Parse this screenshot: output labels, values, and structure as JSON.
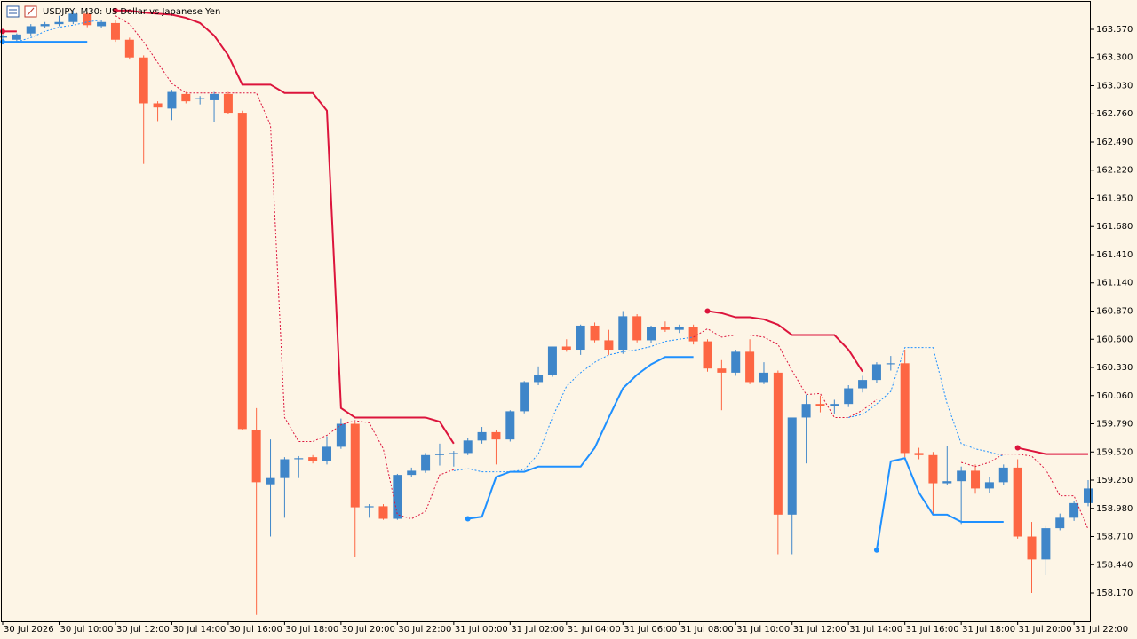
{
  "chart_data": {
    "type": "candlestick",
    "title": "USDJPY, M30:  US Dollar vs Japanese Yen",
    "categories": [
      "30 Jul 2026",
      null,
      null,
      null,
      "30 Jul 10:00",
      null,
      null,
      null,
      "30 Jul 12:00",
      null,
      null,
      null,
      "30 Jul 14:00",
      null,
      null,
      null,
      "30 Jul 16:00",
      null,
      null,
      null,
      "30 Jul 18:00",
      null,
      null,
      null,
      "30 Jul 20:00",
      null,
      null,
      null,
      "30 Jul 22:00",
      null,
      null,
      null,
      "31 Jul 00:00",
      null,
      null,
      null,
      "31 Jul 02:00",
      null,
      null,
      null,
      "31 Jul 04:00",
      null,
      null,
      null,
      "31 Jul 06:00",
      null,
      null,
      null,
      "31 Jul 08:00",
      null,
      null,
      null,
      "31 Jul 10:00",
      null,
      null,
      null,
      "31 Jul 12:00",
      null,
      null,
      null,
      "31 Jul 14:00",
      null,
      null,
      null,
      "31 Jul 16:00",
      null,
      null,
      null,
      "31 Jul 18:00",
      null,
      null,
      null,
      "31 Jul 20:00",
      null,
      null,
      null,
      "31 Jul 22:00",
      null
    ],
    "open": [
      163.49,
      163.47,
      163.53,
      163.6,
      163.62,
      163.64,
      163.72,
      163.6,
      163.63,
      163.47,
      163.3,
      162.86,
      162.81,
      162.95,
      162.9,
      162.89,
      162.95,
      162.77,
      159.73,
      159.21,
      159.27,
      159.45,
      159.47,
      159.43,
      159.57,
      159.79,
      158.99,
      159.0,
      158.88,
      159.3,
      159.34,
      159.49,
      159.5,
      159.51,
      159.63,
      159.71,
      159.64,
      159.91,
      160.19,
      160.26,
      160.53,
      160.5,
      160.73,
      160.59,
      160.5,
      160.82,
      160.59,
      160.72,
      160.69,
      160.72,
      160.58,
      160.32,
      160.28,
      160.48,
      160.19,
      160.28,
      158.92,
      159.85,
      159.98,
      159.96,
      159.98,
      160.13,
      160.21,
      160.36,
      160.37,
      159.51,
      159.49,
      159.22,
      159.24,
      159.34,
      159.17,
      159.23,
      159.37,
      158.71,
      158.49,
      158.79,
      158.89,
      159.03
    ],
    "high": [
      163.52,
      163.53,
      163.62,
      163.64,
      163.7,
      163.75,
      163.74,
      163.66,
      163.66,
      163.49,
      163.32,
      162.88,
      162.99,
      162.97,
      162.93,
      162.97,
      162.97,
      162.79,
      159.94,
      159.64,
      159.47,
      159.48,
      159.49,
      159.67,
      159.84,
      159.81,
      159.02,
      159.02,
      159.31,
      159.37,
      159.51,
      159.6,
      159.53,
      159.65,
      159.76,
      159.73,
      159.92,
      160.2,
      160.34,
      160.53,
      160.6,
      160.74,
      160.76,
      160.69,
      160.87,
      160.84,
      160.73,
      160.77,
      160.74,
      160.74,
      160.6,
      160.4,
      160.5,
      160.6,
      160.38,
      160.3,
      159.85,
      160.07,
      160.06,
      160.02,
      160.16,
      160.25,
      160.38,
      160.44,
      160.5,
      159.56,
      159.52,
      159.58,
      159.38,
      159.4,
      159.28,
      159.4,
      159.45,
      158.85,
      158.81,
      158.93,
      159.05,
      159.25
    ],
    "low": [
      163.47,
      163.45,
      163.5,
      163.58,
      163.6,
      163.62,
      163.59,
      163.58,
      163.45,
      163.28,
      162.28,
      162.69,
      162.7,
      162.86,
      162.85,
      162.68,
      162.76,
      159.73,
      157.96,
      158.71,
      158.89,
      159.27,
      159.41,
      159.4,
      159.55,
      158.51,
      158.89,
      158.87,
      158.87,
      159.28,
      159.32,
      159.39,
      159.38,
      159.49,
      159.6,
      159.4,
      159.62,
      159.89,
      160.16,
      160.24,
      160.48,
      160.45,
      160.57,
      160.45,
      160.46,
      160.57,
      160.56,
      160.67,
      160.66,
      160.55,
      160.29,
      159.92,
      160.25,
      160.17,
      160.17,
      158.54,
      158.54,
      159.41,
      159.9,
      159.88,
      159.95,
      160.09,
      160.18,
      160.3,
      159.47,
      159.45,
      158.92,
      159.2,
      158.83,
      159.12,
      159.13,
      159.2,
      158.69,
      158.17,
      158.34,
      158.77,
      158.86,
      159.0
    ],
    "close": [
      163.51,
      163.52,
      163.6,
      163.62,
      163.64,
      163.72,
      163.61,
      163.64,
      163.47,
      163.3,
      162.86,
      162.82,
      162.97,
      162.88,
      162.91,
      162.95,
      162.77,
      159.74,
      159.23,
      159.27,
      159.45,
      159.46,
      159.43,
      159.57,
      159.79,
      158.99,
      159.0,
      158.88,
      159.3,
      159.34,
      159.49,
      159.5,
      159.51,
      159.63,
      159.71,
      159.64,
      159.91,
      160.19,
      160.26,
      160.53,
      160.5,
      160.73,
      160.59,
      160.5,
      160.82,
      160.59,
      160.72,
      160.69,
      160.72,
      160.58,
      160.32,
      160.28,
      160.48,
      160.19,
      160.28,
      158.92,
      159.85,
      159.98,
      159.96,
      159.98,
      160.13,
      160.21,
      160.36,
      160.37,
      159.51,
      159.49,
      159.22,
      159.24,
      159.34,
      159.17,
      159.23,
      159.37,
      158.71,
      158.49,
      158.79,
      158.89,
      159.03,
      159.17
    ],
    "up_color": "#3f86c9",
    "down_color": "#fd6643",
    "overlays": [
      {
        "color": "#dc143c",
        "style": "solid",
        "values": [
          163.55,
          163.55,
          null,
          null,
          null,
          null,
          null,
          null,
          163.75,
          163.75,
          163.73,
          163.72,
          163.71,
          163.68,
          163.63,
          163.51,
          163.32,
          163.04,
          163.04,
          163.04,
          162.96,
          162.96,
          162.96,
          162.79,
          159.94,
          159.85,
          159.85,
          159.85,
          159.85,
          159.85,
          159.85,
          159.81,
          159.6,
          null,
          null,
          null,
          null,
          null,
          null,
          null,
          null,
          null,
          null,
          null,
          null,
          null,
          null,
          null,
          null,
          null,
          160.87,
          160.85,
          160.81,
          160.81,
          160.79,
          160.74,
          160.64,
          160.64,
          160.64,
          160.64,
          160.5,
          160.29,
          null,
          null,
          null,
          null,
          null,
          null,
          null,
          null,
          null,
          null,
          159.56,
          159.53,
          159.5,
          159.5,
          159.5,
          159.5
        ]
      },
      {
        "color": "#dc143c",
        "style": "dotted",
        "values": [
          null,
          null,
          null,
          null,
          null,
          null,
          null,
          null,
          163.7,
          163.62,
          163.45,
          163.25,
          163.05,
          162.96,
          162.96,
          162.96,
          162.96,
          162.96,
          162.96,
          162.65,
          159.85,
          159.62,
          159.62,
          159.68,
          159.78,
          159.82,
          159.8,
          159.55,
          158.92,
          158.88,
          158.95,
          159.3,
          159.35,
          null,
          null,
          null,
          null,
          null,
          null,
          null,
          null,
          null,
          null,
          null,
          null,
          null,
          null,
          null,
          null,
          160.62,
          160.7,
          160.62,
          160.64,
          160.64,
          160.62,
          160.55,
          160.3,
          160.07,
          160.08,
          159.85,
          159.85,
          159.92,
          160.02,
          null,
          null,
          null,
          null,
          null,
          159.42,
          159.38,
          159.42,
          159.5,
          159.5,
          159.48,
          159.35,
          159.1,
          159.1,
          158.78
        ]
      },
      {
        "color": "#1e90ff",
        "style": "solid",
        "values": [
          163.45,
          163.45,
          163.45,
          163.45,
          163.45,
          163.45,
          163.45,
          null,
          null,
          null,
          null,
          null,
          null,
          null,
          null,
          null,
          null,
          null,
          null,
          null,
          null,
          null,
          null,
          null,
          null,
          null,
          null,
          null,
          null,
          null,
          null,
          null,
          null,
          158.88,
          158.9,
          159.28,
          159.33,
          159.33,
          159.38,
          159.38,
          159.38,
          159.38,
          159.56,
          159.85,
          160.13,
          160.26,
          160.36,
          160.43,
          160.43,
          160.43,
          null,
          null,
          null,
          null,
          null,
          null,
          null,
          null,
          null,
          null,
          null,
          null,
          158.58,
          159.43,
          159.46,
          159.13,
          158.92,
          158.92,
          158.85,
          158.85,
          158.85,
          158.85,
          null,
          null,
          null,
          null,
          null,
          null
        ]
      },
      {
        "color": "#1e90ff",
        "style": "dotted",
        "values": [
          163.45,
          163.45,
          163.49,
          163.55,
          163.59,
          163.61,
          163.64,
          163.66,
          null,
          null,
          null,
          null,
          null,
          null,
          null,
          null,
          null,
          null,
          null,
          null,
          null,
          null,
          null,
          null,
          null,
          null,
          null,
          null,
          null,
          null,
          null,
          null,
          159.34,
          159.36,
          159.33,
          159.33,
          159.33,
          159.35,
          159.5,
          159.85,
          160.15,
          160.28,
          160.38,
          160.45,
          160.48,
          160.5,
          160.53,
          160.58,
          160.6,
          160.62,
          null,
          null,
          null,
          null,
          null,
          null,
          null,
          null,
          null,
          null,
          159.85,
          159.88,
          159.98,
          160.1,
          160.52,
          160.52,
          160.52,
          159.98,
          159.6,
          159.55,
          159.52,
          159.48,
          null,
          null,
          null,
          null,
          null,
          null
        ]
      }
    ],
    "ylim": [
      157.898,
      163.825
    ],
    "yticks": [
      {
        "value": 163.57,
        "label": "163.570"
      },
      {
        "value": 163.3,
        "label": "163.300"
      },
      {
        "value": 163.03,
        "label": "163.030"
      },
      {
        "value": 162.76,
        "label": "162.760"
      },
      {
        "value": 162.49,
        "label": "162.490"
      },
      {
        "value": 162.22,
        "label": "162.220"
      },
      {
        "value": 161.95,
        "label": "161.950"
      },
      {
        "value": 161.68,
        "label": "161.680"
      },
      {
        "value": 161.41,
        "label": "161.410"
      },
      {
        "value": 161.14,
        "label": "161.140"
      },
      {
        "value": 160.87,
        "label": "160.870"
      },
      {
        "value": 160.6,
        "label": "160.600"
      },
      {
        "value": 160.33,
        "label": "160.330"
      },
      {
        "value": 160.06,
        "label": "160.060"
      },
      {
        "value": 159.79,
        "label": "159.790"
      },
      {
        "value": 159.52,
        "label": "159.520"
      },
      {
        "value": 159.25,
        "label": "159.250"
      },
      {
        "value": 158.98,
        "label": "158.980"
      },
      {
        "value": 158.71,
        "label": "158.710"
      },
      {
        "value": 158.44,
        "label": "158.440"
      },
      {
        "value": 158.17,
        "label": "158.170"
      }
    ]
  }
}
